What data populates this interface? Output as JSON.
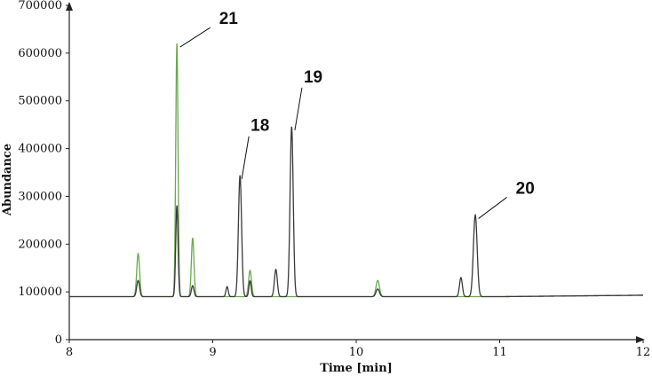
{
  "chart_data": {
    "type": "line",
    "title": "",
    "xlabel": "Time [min]",
    "ylabel": "Abundance",
    "xlim": [
      8,
      12
    ],
    "ylim": [
      0,
      700000
    ],
    "grid": false,
    "x_ticks": [
      "8",
      "9",
      "10",
      "11",
      "12"
    ],
    "y_ticks": [
      "0",
      "100000",
      "200000",
      "300000",
      "400000",
      "500000",
      "600000",
      "700000"
    ],
    "baseline": 90000,
    "series": [
      {
        "color": "#6aa84f",
        "peaks": [
          {
            "x": 8.48,
            "y": 180000,
            "w": 0.01
          },
          {
            "x": 8.75,
            "y": 620000,
            "w": 0.008
          },
          {
            "x": 8.86,
            "y": 213000,
            "w": 0.009
          },
          {
            "x": 9.26,
            "y": 145000,
            "w": 0.01
          },
          {
            "x": 10.15,
            "y": 124000,
            "w": 0.012
          }
        ]
      },
      {
        "color": "#3a3a3a",
        "peaks": [
          {
            "x": 8.48,
            "y": 124000,
            "w": 0.01
          },
          {
            "x": 8.75,
            "y": 281000,
            "w": 0.008
          },
          {
            "x": 8.86,
            "y": 113000,
            "w": 0.009
          },
          {
            "x": 9.1,
            "y": 111000,
            "w": 0.008
          },
          {
            "x": 9.19,
            "y": 344000,
            "w": 0.011
          },
          {
            "x": 9.26,
            "y": 123000,
            "w": 0.008
          },
          {
            "x": 9.44,
            "y": 147000,
            "w": 0.01
          },
          {
            "x": 9.55,
            "y": 446000,
            "w": 0.011
          },
          {
            "x": 10.15,
            "y": 106000,
            "w": 0.012
          },
          {
            "x": 10.73,
            "y": 130000,
            "w": 0.01
          },
          {
            "x": 10.83,
            "y": 261000,
            "w": 0.013
          }
        ]
      }
    ],
    "annotations": [
      {
        "text": "21",
        "x": 8.76,
        "y": 620000
      },
      {
        "text": "18",
        "x": 9.19,
        "y": 344000
      },
      {
        "text": "19",
        "x": 9.56,
        "y": 446000
      },
      {
        "text": "20",
        "x": 10.84,
        "y": 261000
      }
    ]
  }
}
